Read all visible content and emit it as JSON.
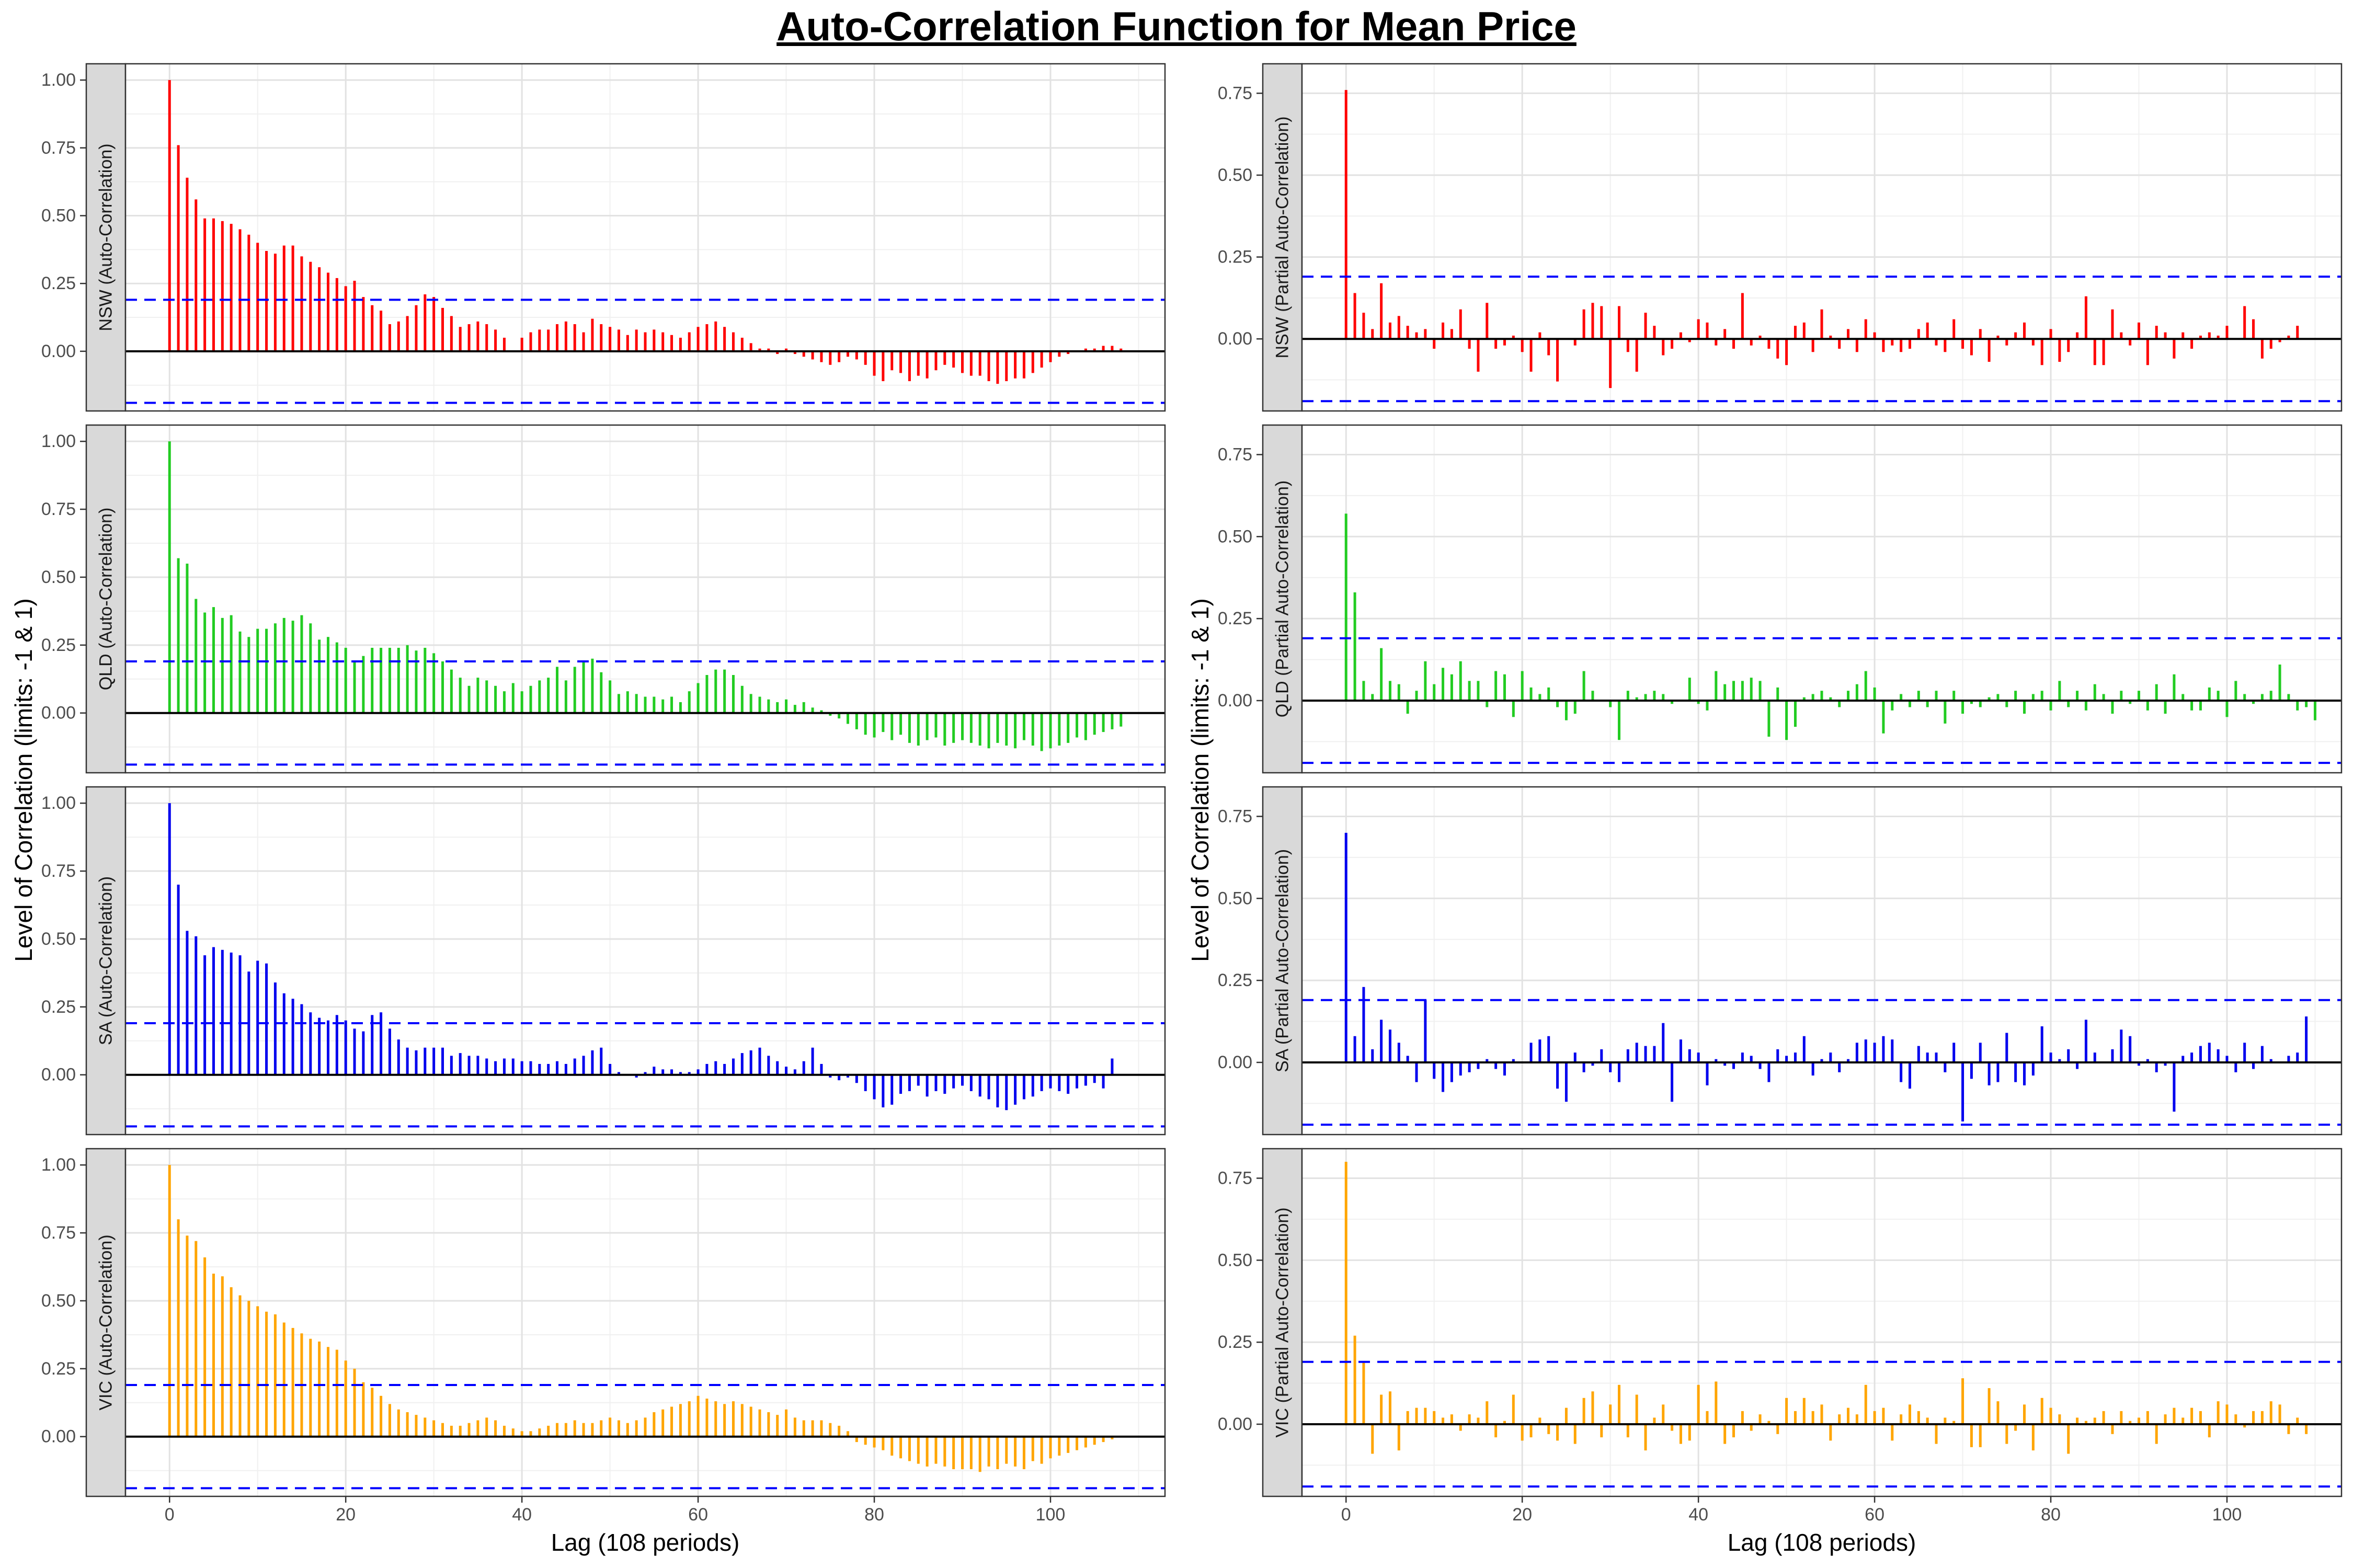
{
  "title": "Auto-Correlation Function for Mean Price",
  "colors": {
    "NSW": "#ff0000",
    "QLD": "#22cc22",
    "SA": "#0000ee",
    "VIC": "#ffa500",
    "confidence_line": "#0000ff",
    "zero_line": "#000000"
  },
  "chart_data": [
    {
      "type": "bar",
      "column": "acf",
      "ylabel": "Level of Correlation (limits: -1 & 1)",
      "xlabel": "Lag (108 periods)",
      "xlim": [
        -5,
        113
      ],
      "x_ticks": [
        0,
        20,
        40,
        60,
        80,
        100
      ],
      "y_ticks": [
        0.0,
        0.25,
        0.5,
        0.75,
        1.0
      ],
      "y_tick_labels": [
        "0.00",
        "0.25",
        "0.50",
        "0.75",
        "1.00"
      ],
      "ylim": [
        -0.22,
        1.06
      ],
      "confidence_bounds": [
        0.19,
        -0.19
      ],
      "panels": [
        {
          "region": "NSW",
          "strip": "NSW (Auto-Correlation)",
          "color": "#ff0000",
          "values": [
            1.0,
            0.76,
            0.64,
            0.56,
            0.49,
            0.49,
            0.48,
            0.47,
            0.45,
            0.43,
            0.4,
            0.37,
            0.36,
            0.39,
            0.39,
            0.35,
            0.33,
            0.31,
            0.29,
            0.27,
            0.24,
            0.26,
            0.2,
            0.17,
            0.15,
            0.1,
            0.11,
            0.13,
            0.17,
            0.21,
            0.2,
            0.16,
            0.13,
            0.09,
            0.1,
            0.11,
            0.1,
            0.08,
            0.05,
            0.0,
            0.05,
            0.07,
            0.08,
            0.08,
            0.1,
            0.11,
            0.1,
            0.07,
            0.12,
            0.1,
            0.09,
            0.08,
            0.06,
            0.08,
            0.07,
            0.08,
            0.07,
            0.06,
            0.05,
            0.07,
            0.09,
            0.1,
            0.11,
            0.09,
            0.07,
            0.05,
            0.03,
            0.01,
            0.01,
            -0.01,
            0.01,
            -0.01,
            -0.02,
            -0.03,
            -0.04,
            -0.05,
            -0.04,
            -0.02,
            -0.03,
            -0.05,
            -0.09,
            -0.11,
            -0.07,
            -0.08,
            -0.11,
            -0.09,
            -0.1,
            -0.07,
            -0.05,
            -0.06,
            -0.08,
            -0.09,
            -0.09,
            -0.11,
            -0.12,
            -0.11,
            -0.1,
            -0.1,
            -0.08,
            -0.06,
            -0.04,
            -0.02,
            -0.01,
            0.0,
            0.01,
            0.01,
            0.02,
            0.02,
            0.01
          ]
        },
        {
          "region": "QLD",
          "strip": "QLD (Auto-Correlation)",
          "color": "#22cc22",
          "values": [
            1.0,
            0.57,
            0.55,
            0.42,
            0.37,
            0.39,
            0.35,
            0.36,
            0.3,
            0.28,
            0.31,
            0.31,
            0.33,
            0.35,
            0.34,
            0.36,
            0.33,
            0.27,
            0.28,
            0.26,
            0.24,
            0.19,
            0.21,
            0.24,
            0.24,
            0.24,
            0.24,
            0.25,
            0.23,
            0.24,
            0.22,
            0.19,
            0.16,
            0.13,
            0.1,
            0.13,
            0.12,
            0.1,
            0.08,
            0.11,
            0.08,
            0.1,
            0.12,
            0.13,
            0.17,
            0.12,
            0.17,
            0.19,
            0.2,
            0.15,
            0.12,
            0.07,
            0.08,
            0.07,
            0.06,
            0.06,
            0.05,
            0.06,
            0.04,
            0.08,
            0.11,
            0.14,
            0.16,
            0.16,
            0.14,
            0.1,
            0.07,
            0.06,
            0.05,
            0.04,
            0.05,
            0.03,
            0.04,
            0.02,
            0.01,
            -0.01,
            -0.02,
            -0.04,
            -0.06,
            -0.08,
            -0.09,
            -0.07,
            -0.1,
            -0.08,
            -0.11,
            -0.12,
            -0.1,
            -0.09,
            -0.12,
            -0.11,
            -0.1,
            -0.11,
            -0.12,
            -0.13,
            -0.11,
            -0.12,
            -0.13,
            -0.1,
            -0.12,
            -0.14,
            -0.13,
            -0.12,
            -0.11,
            -0.09,
            -0.1,
            -0.08,
            -0.07,
            -0.06,
            -0.05
          ]
        },
        {
          "region": "SA",
          "strip": "SA (Auto-Correlation)",
          "color": "#0000ee",
          "values": [
            1.0,
            0.7,
            0.53,
            0.51,
            0.44,
            0.47,
            0.46,
            0.45,
            0.44,
            0.38,
            0.42,
            0.41,
            0.34,
            0.3,
            0.28,
            0.26,
            0.23,
            0.21,
            0.2,
            0.22,
            0.2,
            0.17,
            0.16,
            0.22,
            0.23,
            0.17,
            0.13,
            0.1,
            0.09,
            0.1,
            0.1,
            0.1,
            0.07,
            0.08,
            0.07,
            0.07,
            0.06,
            0.05,
            0.06,
            0.06,
            0.05,
            0.05,
            0.04,
            0.04,
            0.05,
            0.04,
            0.06,
            0.07,
            0.09,
            0.1,
            0.04,
            0.01,
            0.0,
            -0.01,
            0.01,
            0.03,
            0.02,
            0.02,
            0.01,
            0.01,
            0.02,
            0.04,
            0.05,
            0.04,
            0.06,
            0.08,
            0.09,
            0.1,
            0.07,
            0.05,
            0.03,
            0.02,
            0.05,
            0.1,
            0.04,
            -0.01,
            -0.02,
            -0.01,
            -0.03,
            -0.06,
            -0.09,
            -0.12,
            -0.11,
            -0.07,
            -0.06,
            -0.04,
            -0.08,
            -0.06,
            -0.07,
            -0.05,
            -0.04,
            -0.06,
            -0.08,
            -0.09,
            -0.12,
            -0.13,
            -0.11,
            -0.09,
            -0.08,
            -0.06,
            -0.05,
            -0.06,
            -0.07,
            -0.05,
            -0.04,
            -0.03,
            -0.05,
            0.06
          ]
        },
        {
          "region": "VIC",
          "strip": "VIC (Auto-Correlation)",
          "color": "#ffa500",
          "values": [
            1.0,
            0.8,
            0.74,
            0.72,
            0.66,
            0.6,
            0.59,
            0.55,
            0.52,
            0.5,
            0.48,
            0.46,
            0.45,
            0.42,
            0.4,
            0.38,
            0.36,
            0.35,
            0.33,
            0.32,
            0.28,
            0.25,
            0.2,
            0.18,
            0.15,
            0.12,
            0.1,
            0.09,
            0.08,
            0.07,
            0.06,
            0.05,
            0.04,
            0.04,
            0.05,
            0.06,
            0.07,
            0.06,
            0.04,
            0.03,
            0.02,
            0.02,
            0.03,
            0.04,
            0.05,
            0.05,
            0.06,
            0.05,
            0.05,
            0.06,
            0.07,
            0.06,
            0.05,
            0.06,
            0.07,
            0.09,
            0.1,
            0.11,
            0.12,
            0.13,
            0.15,
            0.14,
            0.13,
            0.12,
            0.13,
            0.12,
            0.11,
            0.1,
            0.09,
            0.08,
            0.1,
            0.07,
            0.06,
            0.06,
            0.06,
            0.05,
            0.04,
            0.02,
            -0.02,
            -0.03,
            -0.04,
            -0.05,
            -0.07,
            -0.08,
            -0.09,
            -0.1,
            -0.11,
            -0.1,
            -0.11,
            -0.12,
            -0.12,
            -0.12,
            -0.13,
            -0.11,
            -0.12,
            -0.1,
            -0.11,
            -0.12,
            -0.09,
            -0.1,
            -0.08,
            -0.07,
            -0.06,
            -0.05,
            -0.04,
            -0.03,
            -0.02,
            -0.01
          ]
        }
      ]
    },
    {
      "type": "bar",
      "column": "pacf",
      "ylabel": "Level of Correlation (limits: -1 & 1)",
      "xlabel": "Lag (108 periods)",
      "xlim": [
        -5,
        113
      ],
      "x_ticks": [
        0,
        20,
        40,
        60,
        80,
        100
      ],
      "y_ticks": [
        0.0,
        0.25,
        0.5,
        0.75
      ],
      "y_tick_labels": [
        "0.00",
        "0.25",
        "0.50",
        "0.75"
      ],
      "ylim": [
        -0.22,
        0.84
      ],
      "confidence_bounds": [
        0.19,
        -0.19
      ],
      "panels": [
        {
          "region": "NSW",
          "strip": "NSW (Partial Auto-Correlation)",
          "color": "#ff0000",
          "values": [
            0.76,
            0.14,
            0.08,
            0.03,
            0.17,
            0.05,
            0.07,
            0.04,
            0.02,
            0.03,
            -0.03,
            0.05,
            0.03,
            0.09,
            -0.03,
            -0.1,
            0.11,
            -0.03,
            -0.02,
            0.01,
            -0.04,
            -0.1,
            0.02,
            -0.05,
            -0.13,
            0.0,
            -0.02,
            0.09,
            0.11,
            0.1,
            -0.15,
            0.1,
            -0.04,
            -0.1,
            0.08,
            0.04,
            -0.05,
            -0.03,
            0.02,
            -0.01,
            0.06,
            0.05,
            -0.02,
            0.03,
            -0.03,
            0.14,
            -0.02,
            0.01,
            -0.03,
            -0.06,
            -0.08,
            0.04,
            0.05,
            -0.04,
            0.09,
            0.01,
            -0.03,
            0.03,
            -0.04,
            0.06,
            0.02,
            -0.04,
            -0.02,
            -0.04,
            -0.03,
            0.03,
            0.05,
            -0.02,
            -0.04,
            0.06,
            -0.03,
            -0.05,
            0.03,
            -0.07,
            0.01,
            -0.02,
            0.02,
            0.05,
            -0.02,
            -0.08,
            0.03,
            -0.07,
            -0.04,
            0.02,
            0.13,
            -0.08,
            -0.08,
            0.09,
            0.02,
            -0.02,
            0.05,
            -0.08,
            0.04,
            0.02,
            -0.06,
            0.02,
            -0.03,
            0.01,
            0.02,
            0.01,
            0.04,
            0.0,
            0.1,
            0.06,
            -0.06,
            -0.03,
            -0.01,
            0.01,
            0.04
          ]
        },
        {
          "region": "QLD",
          "strip": "QLD (Partial Auto-Correlation)",
          "color": "#22cc22",
          "values": [
            0.57,
            0.33,
            0.06,
            0.02,
            0.16,
            0.06,
            0.05,
            -0.04,
            0.03,
            0.12,
            0.05,
            0.1,
            0.08,
            0.12,
            0.06,
            0.06,
            -0.02,
            0.09,
            0.08,
            -0.05,
            0.09,
            0.04,
            0.02,
            0.04,
            -0.02,
            -0.06,
            -0.04,
            0.09,
            0.03,
            0.0,
            -0.02,
            -0.12,
            0.03,
            0.01,
            0.02,
            0.03,
            0.02,
            -0.01,
            0.0,
            0.07,
            -0.01,
            -0.03,
            0.09,
            0.05,
            0.06,
            0.06,
            0.07,
            0.06,
            -0.11,
            0.04,
            -0.12,
            -0.08,
            0.01,
            0.02,
            0.03,
            0.01,
            -0.02,
            0.03,
            0.05,
            0.09,
            0.04,
            -0.1,
            -0.03,
            0.02,
            -0.02,
            0.03,
            -0.02,
            0.03,
            -0.07,
            0.03,
            -0.04,
            -0.01,
            -0.02,
            0.01,
            0.02,
            -0.02,
            0.03,
            -0.04,
            0.02,
            0.03,
            -0.03,
            0.06,
            -0.02,
            0.03,
            -0.03,
            0.05,
            0.02,
            -0.04,
            0.03,
            -0.01,
            0.03,
            -0.03,
            0.05,
            -0.04,
            0.08,
            0.02,
            -0.03,
            -0.03,
            0.04,
            0.03,
            -0.05,
            0.06,
            0.02,
            -0.01,
            0.02,
            0.03,
            0.11,
            0.02,
            -0.03,
            -0.02,
            -0.06
          ]
        },
        {
          "region": "SA",
          "strip": "SA (Partial Auto-Correlation)",
          "color": "#0000ee",
          "values": [
            0.7,
            0.08,
            0.23,
            0.04,
            0.13,
            0.1,
            0.06,
            0.02,
            -0.06,
            0.19,
            -0.05,
            -0.09,
            -0.06,
            -0.04,
            -0.03,
            -0.02,
            0.01,
            -0.02,
            -0.04,
            0.01,
            0.0,
            0.06,
            0.07,
            0.08,
            -0.08,
            -0.12,
            0.03,
            -0.03,
            -0.01,
            0.04,
            -0.03,
            -0.06,
            0.04,
            0.06,
            0.05,
            0.05,
            0.12,
            -0.12,
            0.07,
            0.04,
            0.03,
            -0.07,
            0.01,
            -0.01,
            -0.02,
            0.03,
            0.02,
            -0.02,
            -0.06,
            0.04,
            0.02,
            0.03,
            0.08,
            -0.04,
            0.01,
            0.03,
            -0.03,
            0.01,
            0.06,
            0.07,
            0.06,
            0.08,
            0.07,
            -0.06,
            -0.08,
            0.05,
            0.03,
            0.03,
            -0.03,
            0.06,
            -0.18,
            -0.05,
            0.06,
            -0.07,
            -0.06,
            0.09,
            -0.06,
            -0.07,
            -0.04,
            0.11,
            0.03,
            0.01,
            0.04,
            -0.02,
            0.13,
            0.03,
            0.0,
            0.04,
            0.1,
            0.08,
            -0.01,
            0.01,
            -0.03,
            -0.01,
            -0.15,
            0.02,
            0.03,
            0.05,
            0.06,
            0.04,
            0.02,
            -0.03,
            0.06,
            -0.02,
            0.05,
            0.01,
            0.0,
            0.02,
            0.03,
            0.14
          ]
        },
        {
          "region": "VIC",
          "strip": "VIC (Partial Auto-Correlation)",
          "color": "#ffa500",
          "values": [
            0.8,
            0.27,
            0.19,
            -0.09,
            0.09,
            0.1,
            -0.08,
            0.04,
            0.05,
            0.05,
            0.04,
            0.02,
            0.03,
            -0.02,
            0.03,
            0.02,
            0.07,
            -0.04,
            0.01,
            0.09,
            -0.05,
            -0.04,
            0.02,
            -0.03,
            -0.05,
            0.05,
            -0.06,
            0.08,
            0.1,
            -0.04,
            0.06,
            0.12,
            -0.04,
            0.09,
            -0.08,
            0.02,
            0.06,
            -0.02,
            -0.06,
            -0.05,
            0.12,
            0.04,
            0.13,
            -0.06,
            -0.04,
            0.04,
            -0.02,
            0.03,
            0.01,
            -0.03,
            0.08,
            0.04,
            0.08,
            0.04,
            0.06,
            -0.05,
            0.03,
            0.05,
            0.03,
            0.12,
            0.04,
            0.05,
            -0.05,
            0.03,
            0.06,
            0.04,
            0.02,
            -0.06,
            0.02,
            0.01,
            0.14,
            -0.07,
            -0.07,
            0.11,
            0.07,
            -0.06,
            -0.02,
            0.06,
            -0.08,
            0.08,
            0.05,
            0.03,
            -0.09,
            0.02,
            0.01,
            0.02,
            0.04,
            -0.03,
            0.04,
            0.01,
            0.02,
            0.04,
            -0.06,
            0.03,
            0.05,
            0.02,
            0.05,
            0.04,
            -0.04,
            0.07,
            0.06,
            0.03,
            -0.01,
            0.04,
            0.04,
            0.07,
            0.06,
            -0.03,
            0.02,
            -0.03
          ]
        }
      ]
    }
  ]
}
